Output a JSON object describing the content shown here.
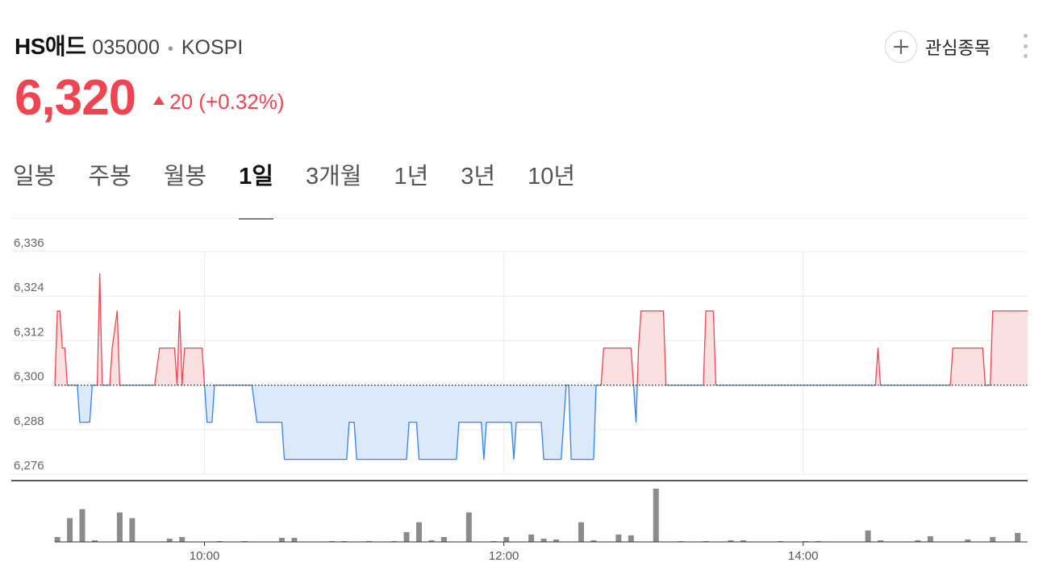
{
  "stock": {
    "name": "HS애드",
    "code": "035000",
    "separator": "•",
    "market": "KOSPI",
    "price": "6,320",
    "change": "20 (+0.32%)",
    "direction": "up"
  },
  "actions": {
    "watch_icon": "plus-icon",
    "watch_label": "관심종목",
    "more_icon": "more-vertical-icon"
  },
  "tabs": [
    {
      "label": "일봉",
      "active": false
    },
    {
      "label": "주봉",
      "active": false
    },
    {
      "label": "월봉",
      "active": false
    },
    {
      "label": "1일",
      "active": true
    },
    {
      "label": "3개월",
      "active": false
    },
    {
      "label": "1년",
      "active": false
    },
    {
      "label": "3년",
      "active": false
    },
    {
      "label": "10년",
      "active": false
    }
  ],
  "colors": {
    "up": "#f04452",
    "down": "#3182f6",
    "up_fill": "#fbe0e2",
    "down_fill": "#dbe9fb",
    "volume": "#8b8b8b"
  },
  "chart_data": {
    "type": "line",
    "baseline": 6300,
    "ylim": [
      6276,
      6336
    ],
    "yticks": [
      "6,336",
      "6,324",
      "6,312",
      "6,300",
      "6,288",
      "6,276"
    ],
    "ytick_values": [
      6336,
      6324,
      6312,
      6300,
      6288,
      6276
    ],
    "xlim": [
      "09:00",
      "15:30"
    ],
    "xticks": [
      "10:00",
      "12:00",
      "14:00"
    ],
    "grid": true,
    "price_series": [
      [
        "09:00",
        6300
      ],
      [
        "09:01",
        6320
      ],
      [
        "09:02",
        6320
      ],
      [
        "09:03",
        6310
      ],
      [
        "09:04",
        6310
      ],
      [
        "09:05",
        6300
      ],
      [
        "09:09",
        6300
      ],
      [
        "09:10",
        6290
      ],
      [
        "09:14",
        6290
      ],
      [
        "09:15",
        6300
      ],
      [
        "09:17",
        6300
      ],
      [
        "09:18",
        6330
      ],
      [
        "09:19",
        6300
      ],
      [
        "09:22",
        6300
      ],
      [
        "09:23",
        6310
      ],
      [
        "09:25",
        6320
      ],
      [
        "09:26",
        6300
      ],
      [
        "09:40",
        6300
      ],
      [
        "09:42",
        6310
      ],
      [
        "09:48",
        6310
      ],
      [
        "09:49",
        6300
      ],
      [
        "09:50",
        6320
      ],
      [
        "09:51",
        6300
      ],
      [
        "09:52",
        6310
      ],
      [
        "09:59",
        6310
      ],
      [
        "10:00",
        6300
      ],
      [
        "10:01",
        6290
      ],
      [
        "10:03",
        6290
      ],
      [
        "10:04",
        6300
      ],
      [
        "10:19",
        6300
      ],
      [
        "10:21",
        6290
      ],
      [
        "10:31",
        6290
      ],
      [
        "10:32",
        6280
      ],
      [
        "10:57",
        6280
      ],
      [
        "10:58",
        6290
      ],
      [
        "11:00",
        6290
      ],
      [
        "11:01",
        6280
      ],
      [
        "11:21",
        6280
      ],
      [
        "11:22",
        6290
      ],
      [
        "11:25",
        6290
      ],
      [
        "11:26",
        6280
      ],
      [
        "11:41",
        6280
      ],
      [
        "11:42",
        6290
      ],
      [
        "11:51",
        6290
      ],
      [
        "11:52",
        6280
      ],
      [
        "11:53",
        6290
      ],
      [
        "12:03",
        6290
      ],
      [
        "12:04",
        6280
      ],
      [
        "12:05",
        6290
      ],
      [
        "12:15",
        6290
      ],
      [
        "12:16",
        6280
      ],
      [
        "12:23",
        6280
      ],
      [
        "12:24",
        6290
      ],
      [
        "12:25",
        6300
      ],
      [
        "12:26",
        6300
      ],
      [
        "12:27",
        6280
      ],
      [
        "12:36",
        6280
      ],
      [
        "12:37",
        6300
      ],
      [
        "12:39",
        6300
      ],
      [
        "12:40",
        6310
      ],
      [
        "12:51",
        6310
      ],
      [
        "12:52",
        6300
      ],
      [
        "12:53",
        6290
      ],
      [
        "12:54",
        6310
      ],
      [
        "12:55",
        6320
      ],
      [
        "13:04",
        6320
      ],
      [
        "13:05",
        6300
      ],
      [
        "13:20",
        6300
      ],
      [
        "13:21",
        6320
      ],
      [
        "13:24",
        6320
      ],
      [
        "13:25",
        6300
      ],
      [
        "14:29",
        6300
      ],
      [
        "14:30",
        6310
      ],
      [
        "14:31",
        6300
      ],
      [
        "14:59",
        6300
      ],
      [
        "15:00",
        6310
      ],
      [
        "15:12",
        6310
      ],
      [
        "15:13",
        6300
      ],
      [
        "15:15",
        6300
      ],
      [
        "15:16",
        6320
      ],
      [
        "15:30",
        6320
      ]
    ],
    "volume_series": [
      [
        "09:01",
        6
      ],
      [
        "09:06",
        29
      ],
      [
        "09:11",
        40
      ],
      [
        "09:16",
        2
      ],
      [
        "09:26",
        36
      ],
      [
        "09:31",
        29
      ],
      [
        "09:46",
        4
      ],
      [
        "09:51",
        6
      ],
      [
        "10:06",
        1
      ],
      [
        "10:16",
        1
      ],
      [
        "10:31",
        5
      ],
      [
        "10:36",
        5
      ],
      [
        "10:51",
        1
      ],
      [
        "10:56",
        1
      ],
      [
        "11:06",
        1
      ],
      [
        "11:16",
        1
      ],
      [
        "11:21",
        12
      ],
      [
        "11:26",
        24
      ],
      [
        "11:31",
        2
      ],
      [
        "11:36",
        6
      ],
      [
        "11:46",
        36
      ],
      [
        "11:56",
        1
      ],
      [
        "12:01",
        6
      ],
      [
        "12:11",
        9
      ],
      [
        "12:16",
        4
      ],
      [
        "12:21",
        3
      ],
      [
        "12:31",
        24
      ],
      [
        "12:36",
        2
      ],
      [
        "12:46",
        9
      ],
      [
        "12:51",
        8
      ],
      [
        "13:01",
        65
      ],
      [
        "13:11",
        1
      ],
      [
        "13:21",
        1
      ],
      [
        "13:31",
        2
      ],
      [
        "13:36",
        2
      ],
      [
        "13:51",
        1
      ],
      [
        "14:01",
        1
      ],
      [
        "14:06",
        1
      ],
      [
        "14:26",
        14
      ],
      [
        "14:31",
        2
      ],
      [
        "14:46",
        2
      ],
      [
        "14:51",
        7
      ],
      [
        "15:06",
        3
      ],
      [
        "15:16",
        6
      ],
      [
        "15:26",
        11
      ]
    ]
  }
}
